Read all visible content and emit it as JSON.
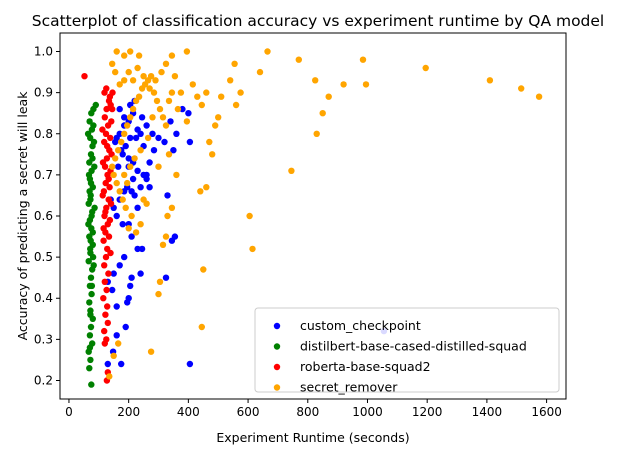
{
  "chart_data": {
    "type": "scatter",
    "title": "Scatterplot of classification accuracy vs experiment runtime by QA model",
    "xlabel": "Experiment Runtime (seconds)",
    "ylabel": "Accuracy of predicting a secret will leak",
    "xlim": [
      -30,
      1665
    ],
    "ylim": [
      0.155,
      1.045
    ],
    "xticks": [
      0,
      200,
      400,
      600,
      800,
      1000,
      1200,
      1400,
      1600
    ],
    "yticks": [
      0.2,
      0.3,
      0.4,
      0.5,
      0.6,
      0.7,
      0.8,
      0.9,
      1.0
    ],
    "ytick_labels": [
      "0.2",
      "0.3",
      "0.4",
      "0.5",
      "0.6",
      "0.7",
      "0.8",
      "0.9",
      "1.0"
    ],
    "grid": false,
    "legend_position": "lower-right",
    "series": [
      {
        "name": "custom_checkpoint",
        "color": "#0000ff",
        "points": [
          [
            130,
            0.24
          ],
          [
            148,
            0.27
          ],
          [
            160,
            0.31
          ],
          [
            175,
            0.24
          ],
          [
            190,
            0.33
          ],
          [
            200,
            0.4
          ],
          [
            205,
            0.43
          ],
          [
            210,
            0.45
          ],
          [
            195,
            0.39
          ],
          [
            160,
            0.38
          ],
          [
            145,
            0.42
          ],
          [
            130,
            0.44
          ],
          [
            150,
            0.46
          ],
          [
            170,
            0.48
          ],
          [
            185,
            0.5
          ],
          [
            240,
            0.46
          ],
          [
            245,
            0.52
          ],
          [
            230,
            0.52
          ],
          [
            210,
            0.55
          ],
          [
            200,
            0.58
          ],
          [
            180,
            0.58
          ],
          [
            160,
            0.6
          ],
          [
            150,
            0.62
          ],
          [
            140,
            0.64
          ],
          [
            170,
            0.64
          ],
          [
            185,
            0.66
          ],
          [
            195,
            0.67
          ],
          [
            210,
            0.66
          ],
          [
            220,
            0.65
          ],
          [
            240,
            0.67
          ],
          [
            260,
            0.69
          ],
          [
            270,
            0.67
          ],
          [
            250,
            0.7
          ],
          [
            230,
            0.71
          ],
          [
            215,
            0.73
          ],
          [
            200,
            0.74
          ],
          [
            180,
            0.75
          ],
          [
            165,
            0.72
          ],
          [
            155,
            0.78
          ],
          [
            170,
            0.8
          ],
          [
            185,
            0.82
          ],
          [
            200,
            0.83
          ],
          [
            215,
            0.85
          ],
          [
            230,
            0.81
          ],
          [
            245,
            0.84
          ],
          [
            260,
            0.82
          ],
          [
            280,
            0.8
          ],
          [
            300,
            0.79
          ],
          [
            320,
            0.78
          ],
          [
            340,
            0.83
          ],
          [
            350,
            0.76
          ],
          [
            330,
            0.65
          ],
          [
            345,
            0.54
          ],
          [
            355,
            0.55
          ],
          [
            325,
            0.45
          ],
          [
            360,
            0.8
          ],
          [
            380,
            0.86
          ],
          [
            400,
            0.85
          ],
          [
            405,
            0.78
          ],
          [
            405,
            0.24
          ],
          [
            285,
            0.76
          ],
          [
            270,
            0.73
          ],
          [
            260,
            0.7
          ],
          [
            250,
            0.77
          ],
          [
            225,
            0.79
          ],
          [
            205,
            0.79
          ],
          [
            190,
            0.77
          ],
          [
            175,
            0.76
          ],
          [
            160,
            0.79
          ],
          [
            200,
            0.72
          ],
          [
            215,
            0.69
          ],
          [
            230,
            0.62
          ],
          [
            185,
            0.84
          ],
          [
            205,
            0.87
          ],
          [
            220,
            0.88
          ],
          [
            240,
            0.8
          ],
          [
            170,
            0.86
          ],
          [
            1055,
            0.32
          ]
        ]
      },
      {
        "name": "distilbert-base-cased-distilled-squad",
        "color": "#008000",
        "points": [
          [
            75,
            0.19
          ],
          [
            68,
            0.23
          ],
          [
            72,
            0.25
          ],
          [
            66,
            0.27
          ],
          [
            78,
            0.29
          ],
          [
            70,
            0.31
          ],
          [
            74,
            0.33
          ],
          [
            80,
            0.35
          ],
          [
            72,
            0.37
          ],
          [
            68,
            0.39
          ],
          [
            76,
            0.41
          ],
          [
            70,
            0.43
          ],
          [
            74,
            0.45
          ],
          [
            78,
            0.47
          ],
          [
            66,
            0.49
          ],
          [
            72,
            0.51
          ],
          [
            80,
            0.53
          ],
          [
            68,
            0.55
          ],
          [
            75,
            0.57
          ],
          [
            70,
            0.59
          ],
          [
            78,
            0.61
          ],
          [
            66,
            0.63
          ],
          [
            73,
            0.65
          ],
          [
            80,
            0.67
          ],
          [
            70,
            0.69
          ],
          [
            76,
            0.71
          ],
          [
            68,
            0.73
          ],
          [
            74,
            0.75
          ],
          [
            79,
            0.77
          ],
          [
            71,
            0.79
          ],
          [
            77,
            0.81
          ],
          [
            69,
            0.83
          ],
          [
            75,
            0.85
          ],
          [
            82,
            0.86
          ],
          [
            90,
            0.87
          ],
          [
            72,
            0.36
          ],
          [
            64,
            0.8
          ],
          [
            70,
            0.28
          ],
          [
            80,
            0.56
          ],
          [
            86,
            0.62
          ],
          [
            85,
            0.72
          ],
          [
            84,
            0.78
          ],
          [
            81,
            0.5
          ],
          [
            77,
            0.43
          ],
          [
            73,
            0.54
          ],
          [
            69,
            0.66
          ],
          [
            74,
            0.68
          ],
          [
            79,
            0.74
          ],
          [
            82,
            0.82
          ],
          [
            65,
            0.58
          ],
          [
            71,
            0.52
          ],
          [
            83,
            0.48
          ],
          [
            67,
            0.7
          ],
          [
            76,
            0.6
          ],
          [
            72,
            0.64
          ]
        ]
      },
      {
        "name": "roberta-base-squad2",
        "color": "#ff0000",
        "points": [
          [
            52,
            0.94
          ],
          [
            120,
            0.29
          ],
          [
            125,
            0.3
          ],
          [
            118,
            0.32
          ],
          [
            130,
            0.34
          ],
          [
            122,
            0.36
          ],
          [
            128,
            0.38
          ],
          [
            115,
            0.4
          ],
          [
            126,
            0.42
          ],
          [
            120,
            0.44
          ],
          [
            132,
            0.46
          ],
          [
            118,
            0.48
          ],
          [
            124,
            0.5
          ],
          [
            128,
            0.52
          ],
          [
            116,
            0.54
          ],
          [
            122,
            0.56
          ],
          [
            130,
            0.58
          ],
          [
            119,
            0.6
          ],
          [
            125,
            0.62
          ],
          [
            133,
            0.64
          ],
          [
            117,
            0.66
          ],
          [
            123,
            0.68
          ],
          [
            129,
            0.7
          ],
          [
            121,
            0.72
          ],
          [
            127,
            0.74
          ],
          [
            135,
            0.76
          ],
          [
            118,
            0.78
          ],
          [
            124,
            0.8
          ],
          [
            131,
            0.82
          ],
          [
            120,
            0.84
          ],
          [
            126,
            0.86
          ],
          [
            134,
            0.88
          ],
          [
            119,
            0.9
          ],
          [
            125,
            0.91
          ],
          [
            137,
            0.89
          ],
          [
            140,
            0.87
          ],
          [
            142,
            0.83
          ],
          [
            138,
            0.79
          ],
          [
            143,
            0.75
          ],
          [
            139,
            0.71
          ],
          [
            136,
            0.67
          ],
          [
            141,
            0.63
          ],
          [
            137,
            0.59
          ],
          [
            134,
            0.55
          ],
          [
            139,
            0.51
          ],
          [
            127,
            0.2
          ],
          [
            130,
            0.22
          ],
          [
            145,
            0.86
          ],
          [
            112,
            0.81
          ],
          [
            114,
            0.73
          ],
          [
            113,
            0.65
          ],
          [
            146,
            0.9
          ],
          [
            128,
            0.77
          ],
          [
            133,
            0.69
          ],
          [
            122,
            0.61
          ],
          [
            116,
            0.57
          ]
        ]
      },
      {
        "name": "secret_remover",
        "color": "#ffa500",
        "points": [
          [
            135,
            0.21
          ],
          [
            150,
            0.26
          ],
          [
            165,
            0.29
          ],
          [
            275,
            0.27
          ],
          [
            300,
            0.41
          ],
          [
            305,
            0.44
          ],
          [
            315,
            0.53
          ],
          [
            325,
            0.55
          ],
          [
            330,
            0.6
          ],
          [
            345,
            0.62
          ],
          [
            260,
            0.63
          ],
          [
            250,
            0.64
          ],
          [
            240,
            0.58
          ],
          [
            225,
            0.56
          ],
          [
            210,
            0.6
          ],
          [
            200,
            0.57
          ],
          [
            190,
            0.62
          ],
          [
            180,
            0.64
          ],
          [
            170,
            0.66
          ],
          [
            160,
            0.68
          ],
          [
            150,
            0.7
          ],
          [
            145,
            0.72
          ],
          [
            155,
            0.74
          ],
          [
            165,
            0.76
          ],
          [
            175,
            0.78
          ],
          [
            185,
            0.8
          ],
          [
            195,
            0.82
          ],
          [
            205,
            0.84
          ],
          [
            215,
            0.86
          ],
          [
            225,
            0.88
          ],
          [
            235,
            0.89
          ],
          [
            245,
            0.91
          ],
          [
            255,
            0.92
          ],
          [
            265,
            0.93
          ],
          [
            275,
            0.94
          ],
          [
            285,
            0.9
          ],
          [
            295,
            0.88
          ],
          [
            305,
            0.86
          ],
          [
            315,
            0.84
          ],
          [
            325,
            0.82
          ],
          [
            335,
            0.88
          ],
          [
            345,
            0.9
          ],
          [
            355,
            0.94
          ],
          [
            365,
            0.86
          ],
          [
            375,
            0.9
          ],
          [
            395,
            0.83
          ],
          [
            415,
            0.92
          ],
          [
            430,
            0.89
          ],
          [
            445,
            0.87
          ],
          [
            460,
            0.9
          ],
          [
            470,
            0.78
          ],
          [
            480,
            0.75
          ],
          [
            490,
            0.82
          ],
          [
            500,
            0.84
          ],
          [
            510,
            0.89
          ],
          [
            540,
            0.93
          ],
          [
            555,
            0.97
          ],
          [
            560,
            0.87
          ],
          [
            575,
            0.9
          ],
          [
            605,
            0.6
          ],
          [
            615,
            0.52
          ],
          [
            640,
            0.95
          ],
          [
            665,
            1.0
          ],
          [
            745,
            0.71
          ],
          [
            770,
            0.98
          ],
          [
            825,
            0.93
          ],
          [
            830,
            0.8
          ],
          [
            850,
            0.85
          ],
          [
            870,
            0.89
          ],
          [
            920,
            0.92
          ],
          [
            985,
            0.98
          ],
          [
            995,
            0.92
          ],
          [
            1195,
            0.96
          ],
          [
            1410,
            0.93
          ],
          [
            1515,
            0.91
          ],
          [
            1575,
            0.89
          ],
          [
            450,
            0.47
          ],
          [
            445,
            0.33
          ],
          [
            440,
            0.66
          ],
          [
            460,
            0.67
          ],
          [
            395,
            1.0
          ],
          [
            345,
            0.99
          ],
          [
            325,
            0.97
          ],
          [
            235,
            0.99
          ],
          [
            205,
            1.0
          ],
          [
            185,
            0.99
          ],
          [
            160,
            1.0
          ],
          [
            145,
            0.97
          ],
          [
            155,
            0.95
          ],
          [
            170,
            0.92
          ],
          [
            185,
            0.93
          ],
          [
            200,
            0.95
          ],
          [
            215,
            0.93
          ],
          [
            230,
            0.96
          ],
          [
            250,
            0.94
          ],
          [
            270,
            0.91
          ],
          [
            290,
            0.93
          ],
          [
            310,
            0.95
          ],
          [
            185,
            0.7
          ],
          [
            195,
            0.68
          ],
          [
            205,
            0.72
          ],
          [
            220,
            0.74
          ],
          [
            240,
            0.76
          ],
          [
            265,
            0.79
          ],
          [
            280,
            0.84
          ],
          [
            300,
            0.72
          ],
          [
            335,
            0.75
          ],
          [
            360,
            0.7
          ]
        ]
      }
    ]
  }
}
